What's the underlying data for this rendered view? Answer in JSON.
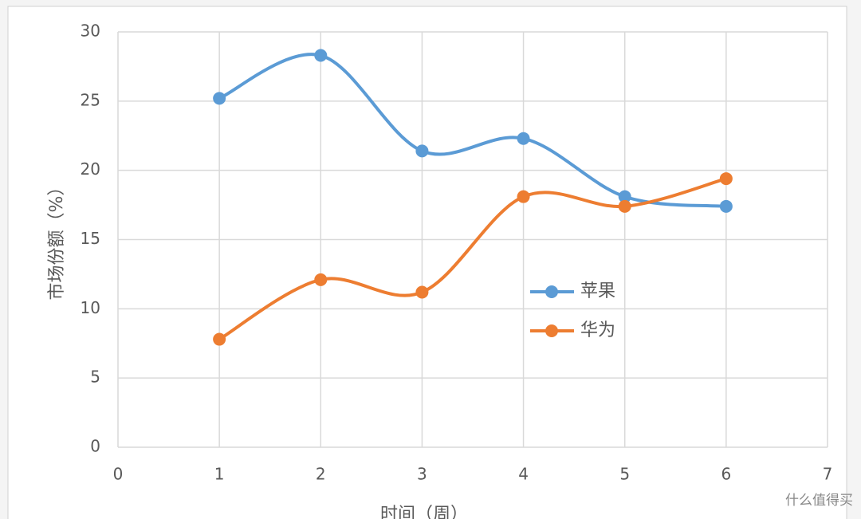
{
  "chart_data": {
    "type": "line",
    "smooth": true,
    "y_label": "市场份额（%）",
    "x_label": "时间（周）",
    "x": [
      1,
      2,
      3,
      4,
      5,
      6
    ],
    "series": [
      {
        "name": "苹果",
        "color": "#5b9bd5",
        "values": [
          25.2,
          28.3,
          21.4,
          22.3,
          18.1,
          17.4
        ]
      },
      {
        "name": "华为",
        "color": "#ed7d31",
        "values": [
          7.8,
          12.1,
          11.2,
          18.1,
          17.4,
          19.4
        ]
      }
    ],
    "xlim": [
      0,
      7
    ],
    "xticks": [
      0,
      1,
      2,
      3,
      4,
      5,
      6,
      7
    ],
    "ylim": [
      0,
      30
    ],
    "yticks": [
      0,
      5,
      10,
      15,
      20,
      25,
      30
    ],
    "grid": true,
    "legend": "center-right",
    "watermark": "什么值得买"
  }
}
